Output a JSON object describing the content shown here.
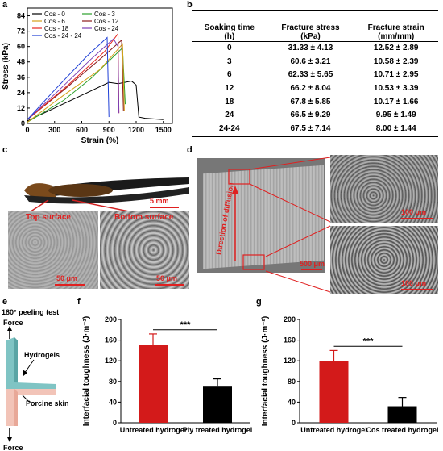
{
  "panels": {
    "a": "a",
    "b": "b",
    "c": "c",
    "d": "d",
    "e": "e",
    "f": "f",
    "g": "g"
  },
  "panel_a": {
    "ylabel": "Stress (kPa)",
    "xlabel": "Strain (%)",
    "yticks": [
      "0",
      "12",
      "24",
      "36",
      "48",
      "60",
      "72",
      "84"
    ],
    "xticks": [
      "0",
      "300",
      "600",
      "900",
      "1200",
      "1500"
    ],
    "legend": [
      {
        "name": "Cos - 0",
        "color": "#000000"
      },
      {
        "name": "Cos - 3",
        "color": "#2ca02c"
      },
      {
        "name": "Cos - 6",
        "color": "#d4a017"
      },
      {
        "name": "Cos - 12",
        "color": "#8b1a1a"
      },
      {
        "name": "Cos - 18",
        "color": "#e6261f"
      },
      {
        "name": "Cos - 24",
        "color": "#7b3fb5"
      },
      {
        "name": "Cos - 24 - 24",
        "color": "#1f3fd6"
      }
    ]
  },
  "chart_data": [
    {
      "type": "line",
      "xlabel": "Strain (%)",
      "ylabel": "Stress (kPa)",
      "xlim": [
        0,
        1600
      ],
      "ylim": [
        0,
        90
      ],
      "series": [
        {
          "name": "Cos - 0",
          "color": "#000000",
          "x": [
            0,
            300,
            600,
            900,
            1000,
            1150,
            1200,
            1230,
            1300,
            1500
          ],
          "y": [
            2,
            12,
            22,
            32,
            31,
            33,
            30,
            5,
            4,
            3
          ]
        },
        {
          "name": "Cos - 3",
          "color": "#2ca02c",
          "x": [
            0,
            400,
            700,
            1050,
            1080
          ],
          "y": [
            1,
            18,
            35,
            59,
            15
          ]
        },
        {
          "name": "Cos - 6",
          "color": "#d4a017",
          "x": [
            0,
            400,
            800,
            1050,
            1070
          ],
          "y": [
            1,
            22,
            42,
            62,
            10
          ]
        },
        {
          "name": "Cos - 12",
          "color": "#8b1a1a",
          "x": [
            0,
            400,
            800,
            1040,
            1060
          ],
          "y": [
            3,
            26,
            50,
            65,
            10
          ]
        },
        {
          "name": "Cos - 18",
          "color": "#e6261f",
          "x": [
            0,
            450,
            850,
            1000,
            1010
          ],
          "y": [
            3,
            30,
            56,
            70,
            8
          ]
        },
        {
          "name": "Cos - 24",
          "color": "#7b3fb5",
          "x": [
            0,
            350,
            700,
            950,
            1000,
            1010
          ],
          "y": [
            3,
            26,
            50,
            66,
            60,
            8
          ]
        },
        {
          "name": "Cos - 24 - 24",
          "color": "#1f3fd6",
          "x": [
            0,
            300,
            650,
            880,
            900
          ],
          "y": [
            3,
            26,
            52,
            67,
            5
          ]
        }
      ]
    },
    {
      "type": "table",
      "columns": [
        "Soaking time (h)",
        "Fracture stress (kPa)",
        "Fracture strain (mm/mm)"
      ],
      "rows": [
        [
          "0",
          "31.33 ± 4.13",
          "12.52 ± 2.89"
        ],
        [
          "3",
          "60.6 ± 3.21",
          "10.58 ± 2.39"
        ],
        [
          "6",
          "62.33 ± 5.65",
          "10.71 ± 2.95"
        ],
        [
          "12",
          "66.2 ± 8.04",
          "10.53 ± 3.39"
        ],
        [
          "18",
          "67.8 ± 5.85",
          "10.17 ± 1.66"
        ],
        [
          "24",
          "66.5 ± 9.29",
          "9.95 ± 1.49"
        ],
        [
          "24-24",
          "67.5 ± 7.14",
          "8.00 ± 1.44"
        ]
      ]
    },
    {
      "type": "bar",
      "categories": [
        "Untreated hydrogel",
        "Ply treated hydrogel"
      ],
      "values": [
        150,
        70
      ],
      "errors": [
        22,
        15
      ],
      "colors": [
        "#d31a1a",
        "#000000"
      ],
      "ylabel": "Interfacial toughness (J·m⁻²)",
      "ylim": [
        0,
        200
      ],
      "significance": "***"
    },
    {
      "type": "bar",
      "categories": [
        "Untreated hydrogel",
        "Cos treated hydrogel"
      ],
      "values": [
        120,
        32
      ],
      "errors": [
        20,
        17
      ],
      "colors": [
        "#d31a1a",
        "#000000"
      ],
      "ylabel": "Interfacial toughness (J·m⁻²)",
      "ylim": [
        0,
        200
      ],
      "significance": "***"
    }
  ],
  "table_b": {
    "headers": [
      {
        "line1": "Soaking time",
        "line2": "(h)"
      },
      {
        "line1": "Fracture stress",
        "line2": "(kPa)"
      },
      {
        "line1": "Fracture strain",
        "line2": "(mm/mm)"
      }
    ]
  },
  "panel_c": {
    "top": "Top surface",
    "bottom": "Bottom surface",
    "scale_photo": "5 mm",
    "scale_top": "50 μm",
    "scale_bottom": "50 μm"
  },
  "panel_d": {
    "direction": "Direction of diffusion",
    "scale_main": "500 μm",
    "scale_top": "100 μm",
    "scale_bottom": "100 μm"
  },
  "panel_e": {
    "title": "180° peeling test",
    "force_top": "Force",
    "force_bottom": "Force",
    "hydrogels": "Hydrogels",
    "porcine": "Porcine skin"
  },
  "panel_f": {
    "yticks": [
      "0",
      "40",
      "80",
      "120",
      "160",
      "200"
    ]
  },
  "panel_g": {
    "yticks": [
      "0",
      "40",
      "80",
      "120",
      "160",
      "200"
    ]
  }
}
